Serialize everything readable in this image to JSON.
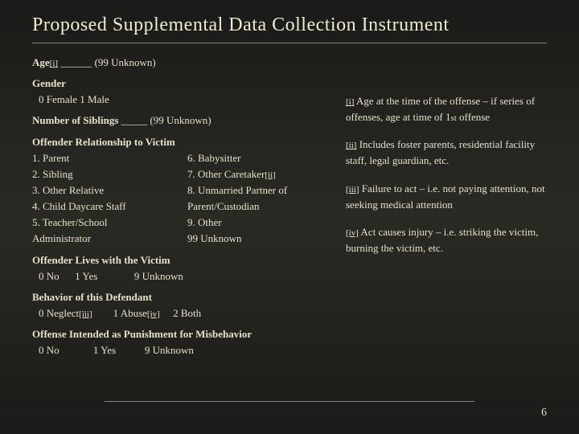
{
  "title": "Proposed Supplemental Data Collection Instrument",
  "left": {
    "age_label": "Age",
    "age_ref": "[i]",
    "age_blank": " ______ ",
    "age_unknown": "(99 Unknown)",
    "gender_label": "Gender",
    "gender_opts": "0  Female     1  Male",
    "siblings_label": "Number of Siblings",
    "siblings_blank": " _____ ",
    "siblings_unknown": "(99 Unknown)",
    "relationship_label": "Offender Relationship to Victim",
    "rel_left_1": "1. Parent",
    "rel_left_2": "2. Sibling",
    "rel_left_3": "3. Other Relative",
    "rel_left_4": "4. Child Daycare Staff",
    "rel_left_5": "5. Teacher/School",
    "rel_left_6": "Administrator",
    "rel_right_1": "6. Babysitter",
    "rel_right_2a": "7. Other Caretaker",
    "rel_right_2b": "[ii]",
    "rel_right_3": "8. Unmarried Partner of",
    "rel_right_4": "Parent/Custodian",
    "rel_right_5": "9. Other",
    "rel_right_6": "99 Unknown",
    "lives_label": "Offender Lives with the Victim",
    "lives_opts_0": "0  No",
    "lives_opts_1": "1  Yes",
    "lives_opts_9": "9  Unknown",
    "behavior_label": "Behavior of this Defendant",
    "behavior_0a": "0  Neglect",
    "behavior_0b": "[iii]",
    "behavior_1a": "1  Abuse",
    "behavior_1b": "[iv]",
    "behavior_2": "2  Both",
    "punishment_label": "Offense Intended as Punishment for Misbehavior",
    "punishment_0": "0  No",
    "punishment_1": "1  Yes",
    "punishment_9": "9  Unknown"
  },
  "notes": {
    "n1_ref": "[i]",
    "n1_text": " Age at the time of the offense – if series of offenses, age at time of 1",
    "n1_sup": "st",
    "n1_tail": " offense",
    "n2_ref": "[ii]",
    "n2_text": " Includes foster parents, residential facility staff, legal guardian, etc.",
    "n3_ref": "[iii]",
    "n3_text": " Failure to act – i.e. not paying attention, not seeking medical attention",
    "n4_ref": "[iv]",
    "n4_text": " Act causes injury – i.e. striking the victim, burning the victim, etc."
  },
  "page_number": "6",
  "colors": {
    "text": "#e8e0c8",
    "rule": "#888888"
  }
}
